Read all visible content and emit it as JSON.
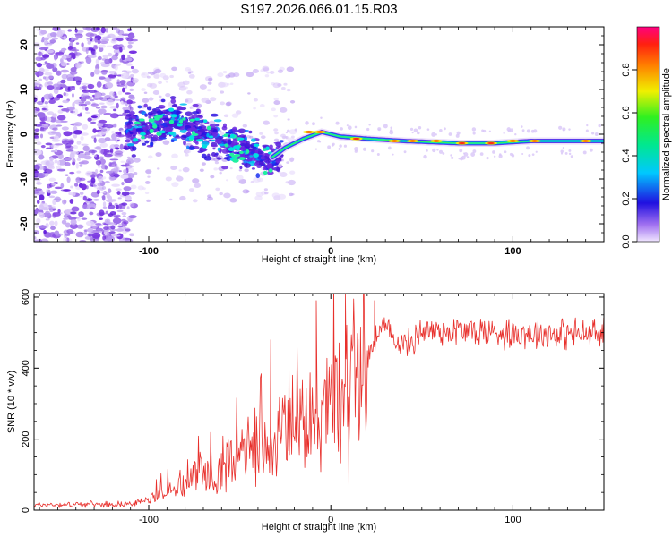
{
  "title": "S197.2026.066.01.15.R03",
  "chart_data": [
    {
      "type": "heatmap",
      "title": "S197.2026.066.01.15.R03",
      "xlabel": "Height of straight line (km)",
      "ylabel": "Frequency (Hz)",
      "xlim": [
        -163,
        150
      ],
      "ylim": [
        -24,
        24
      ],
      "xticks": [
        -100,
        0,
        100
      ],
      "xtick_labels": [
        "-100",
        "0",
        "100"
      ],
      "yticks": [
        -20,
        -10,
        0,
        10,
        20
      ],
      "ytick_labels": [
        "-20",
        "-10",
        "0",
        "10",
        "20"
      ],
      "colorbar": {
        "label": "Normalized spectral amplitude",
        "range": [
          0,
          1
        ],
        "ticks": [
          0.0,
          0.2,
          0.4,
          0.6,
          0.8
        ],
        "tick_labels": [
          "0.0",
          "0.2",
          "0.4",
          "0.6",
          "0.8"
        ]
      },
      "signal_centerline": [
        {
          "x": -110,
          "y": 0.5
        },
        {
          "x": -95,
          "y": 2
        },
        {
          "x": -85,
          "y": 3
        },
        {
          "x": -75,
          "y": 1.5
        },
        {
          "x": -60,
          "y": -2
        },
        {
          "x": -45,
          "y": -4
        },
        {
          "x": -35,
          "y": -6
        },
        {
          "x": -25,
          "y": -3
        },
        {
          "x": -15,
          "y": -1
        },
        {
          "x": -5,
          "y": 0.5
        },
        {
          "x": 5,
          "y": -0.5
        },
        {
          "x": 20,
          "y": -1
        },
        {
          "x": 40,
          "y": -1.5
        },
        {
          "x": 70,
          "y": -2
        },
        {
          "x": 90,
          "y": -2
        },
        {
          "x": 110,
          "y": -1.5
        },
        {
          "x": 150,
          "y": -1.5
        }
      ]
    },
    {
      "type": "line",
      "xlabel": "Height of straight line (km)",
      "ylabel": "SNR (10 * v/v)",
      "xlim": [
        -163,
        150
      ],
      "ylim": [
        0,
        610
      ],
      "xticks": [
        -100,
        0,
        100
      ],
      "xtick_labels": [
        "-100",
        "0",
        "100"
      ],
      "yticks": [
        0,
        200,
        400,
        600
      ],
      "ytick_labels": [
        "0",
        "200",
        "400",
        "600"
      ],
      "line_color": "#e8302c",
      "series": [
        {
          "name": "SNR",
          "trend": [
            {
              "x": -163,
              "y": 15
            },
            {
              "x": -110,
              "y": 18
            },
            {
              "x": -100,
              "y": 30
            },
            {
              "x": -80,
              "y": 80
            },
            {
              "x": -60,
              "y": 130
            },
            {
              "x": -40,
              "y": 180
            },
            {
              "x": -20,
              "y": 220
            },
            {
              "x": -10,
              "y": 250
            },
            {
              "x": 0,
              "y": 300
            },
            {
              "x": 10,
              "y": 360
            },
            {
              "x": 20,
              "y": 430
            },
            {
              "x": 28,
              "y": 520
            },
            {
              "x": 32,
              "y": 500
            },
            {
              "x": 38,
              "y": 470
            },
            {
              "x": 45,
              "y": 470
            },
            {
              "x": 48,
              "y": 505
            },
            {
              "x": 70,
              "y": 505
            },
            {
              "x": 100,
              "y": 500
            },
            {
              "x": 150,
              "y": 495
            }
          ],
          "peaks": [
            {
              "x": -33,
              "y": 480
            },
            {
              "x": -23,
              "y": 460
            },
            {
              "x": -8,
              "y": 590
            },
            {
              "x": 8,
              "y": 610
            },
            {
              "x": 15,
              "y": 480
            },
            {
              "x": 24,
              "y": 590
            }
          ],
          "dips": [
            {
              "x": 10,
              "y": 30
            }
          ]
        }
      ]
    }
  ]
}
